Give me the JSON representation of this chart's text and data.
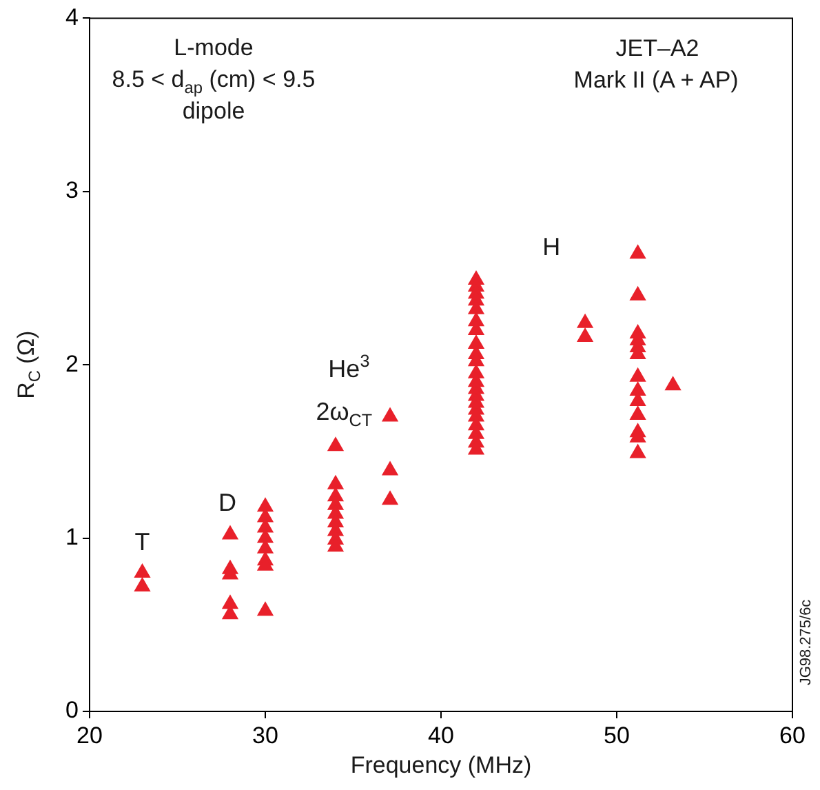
{
  "chart_data": {
    "type": "scatter",
    "xlabel": "Frequency (MHz)",
    "ylabel": "R$_{C}$ (Ω)",
    "x": [
      23,
      23,
      28,
      28,
      28,
      28,
      28,
      30,
      30,
      30,
      30,
      30,
      30,
      30,
      30,
      34,
      34,
      34,
      34,
      34,
      34,
      34,
      34,
      34,
      37.1,
      37.1,
      37.1,
      42,
      42,
      42,
      42,
      42,
      42,
      42,
      42,
      42,
      42,
      42,
      42,
      42,
      42,
      42,
      42,
      42,
      42,
      42,
      42,
      42,
      48.2,
      48.2,
      51.2,
      51.2,
      51.2,
      51.2,
      51.2,
      51.2,
      51.2,
      51.2,
      51.2,
      51.2,
      51.2,
      51.2,
      51.2,
      53.2
    ],
    "series": [
      {
        "color": "#e8202a",
        "values": [
          0.8,
          0.72,
          1.02,
          0.82,
          0.79,
          0.62,
          0.56,
          1.18,
          1.12,
          1.06,
          1.0,
          0.94,
          0.87,
          0.84,
          0.58,
          1.53,
          1.31,
          1.24,
          1.19,
          1.14,
          1.09,
          1.04,
          0.99,
          0.95,
          1.7,
          1.39,
          1.22,
          2.49,
          2.45,
          2.41,
          2.37,
          2.32,
          2.25,
          2.2,
          2.12,
          2.06,
          2.02,
          1.95,
          1.9,
          1.86,
          1.82,
          1.78,
          1.74,
          1.7,
          1.65,
          1.6,
          1.55,
          1.51,
          2.24,
          2.16,
          2.64,
          2.4,
          2.18,
          2.14,
          2.1,
          2.06,
          1.93,
          1.85,
          1.79,
          1.71,
          1.61,
          1.58,
          1.49,
          1.88
        ]
      }
    ],
    "xlim": [
      20,
      60
    ],
    "xticks": [
      20,
      30,
      40,
      50,
      60
    ],
    "ylim": [
      0,
      4
    ],
    "yticks": [
      0,
      1,
      2,
      3,
      4
    ],
    "grid": false,
    "legend": false,
    "marker": "triangle",
    "annotations": [
      "L-mode\n8.5 < d$_{ap}$ (cm) < 9.5\ndipole",
      "JET–A2\nMark II (A + AP)",
      "JG98.275/6c",
      "T",
      "D",
      "He$^{3}$",
      "2ω$_{CT}$",
      "H"
    ]
  }
}
